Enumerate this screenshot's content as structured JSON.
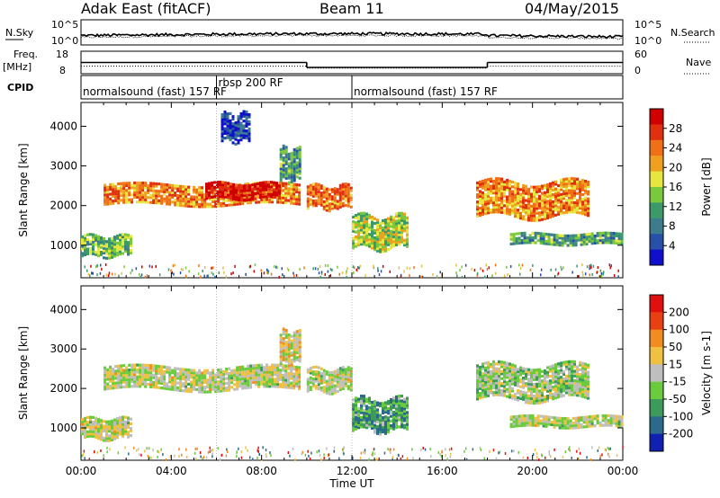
{
  "header": {
    "radar": "Adak East (fitACF)",
    "beam": "Beam 11",
    "date": "04/May/2015"
  },
  "chart_data": [
    {
      "type": "line",
      "panel": "noise",
      "left_label": "N.Sky",
      "right_label": "N.Search",
      "left_ticks": [
        "10^5",
        "10^0"
      ],
      "right_ticks": [
        "10^5",
        "10^0"
      ],
      "x": [
        "00:00",
        "04:00",
        "08:00",
        "12:00",
        "16:00",
        "20:00",
        "00:00"
      ]
    },
    {
      "type": "line",
      "panel": "frequency",
      "left_label_1": "Freq.",
      "left_label_2": "[MHz]",
      "left_ticks": [
        "18",
        "8"
      ],
      "right_label": "Nave",
      "right_ticks": [
        "60",
        "0"
      ],
      "series": [
        {
          "name": "Freq.",
          "segments": [
            {
              "x0": 0,
              "x1": 10,
              "y": 13
            },
            {
              "x0": 10,
              "x1": 18,
              "y": 10.8
            },
            {
              "x0": 18,
              "x1": 24,
              "y": 13
            }
          ]
        },
        {
          "name": "Nave",
          "segments": [
            {
              "x0": 0,
              "x1": 10,
              "y": 20
            },
            {
              "x0": 10,
              "x1": 18,
              "y": 15
            },
            {
              "x0": 18,
              "x1": 24,
              "y": 20
            }
          ]
        }
      ]
    },
    {
      "type": "table",
      "panel": "cpid",
      "label": "CPID",
      "programs": [
        {
          "name": "normalsound (fast) 157 RF",
          "start": 0,
          "end": 6
        },
        {
          "name": "rbsp 200 RF",
          "start": 6,
          "end": 12
        },
        {
          "name": "normalsound (fast) 157 RF",
          "start": 12,
          "end": 24
        }
      ]
    },
    {
      "type": "heatmap",
      "panel": "power",
      "ylabel": "Slant Range [km]",
      "yticks": [
        "4000",
        "3000",
        "2000",
        "1000"
      ],
      "ylim": [
        180,
        4600
      ],
      "xlim": [
        0,
        24
      ],
      "colorbar_label": "Power [dB]",
      "colorbar_ticks": [
        "28",
        "24",
        "20",
        "16",
        "12",
        "8",
        "4"
      ],
      "colorbar_colors": [
        "#1010cc",
        "#2850a8",
        "#3c7c8c",
        "#3c9a6a",
        "#7ac83c",
        "#e6e640",
        "#f0a020",
        "#f07018",
        "#e03010",
        "#d00000"
      ],
      "regions": [
        {
          "t0": 1.0,
          "t1": 9.7,
          "r0": 2000,
          "r1": 2500,
          "level": 0.72
        },
        {
          "t0": 5.5,
          "t1": 8.8,
          "r0": 2150,
          "r1": 2550,
          "level": 0.95
        },
        {
          "t0": 0.0,
          "t1": 2.2,
          "r0": 700,
          "r1": 1200,
          "level": 0.42
        },
        {
          "t0": 10.0,
          "t1": 12.0,
          "r0": 1900,
          "r1": 2500,
          "level": 0.72
        },
        {
          "t0": 12.0,
          "t1": 14.5,
          "r0": 900,
          "r1": 1700,
          "level": 0.5
        },
        {
          "t0": 17.5,
          "t1": 22.5,
          "r0": 1700,
          "r1": 2600,
          "level": 0.7
        },
        {
          "t0": 19.0,
          "t1": 24.0,
          "r0": 1000,
          "r1": 1300,
          "level": 0.35
        },
        {
          "t0": 8.8,
          "t1": 9.7,
          "r0": 2600,
          "r1": 3400,
          "level": 0.35
        },
        {
          "t0": 6.2,
          "t1": 7.4,
          "r0": 3600,
          "r1": 4300,
          "level": 0.12
        }
      ]
    },
    {
      "type": "heatmap",
      "panel": "velocity",
      "ylabel": "Slant Range [km]",
      "yticks": [
        "4000",
        "3000",
        "2000",
        "1000"
      ],
      "ylim": [
        180,
        4600
      ],
      "xlim": [
        0,
        24
      ],
      "xticks": [
        "00:00",
        "04:00",
        "08:00",
        "12:00",
        "16:00",
        "20:00",
        "00:00"
      ],
      "xlabel": "Time UT",
      "colorbar_label": "Velocity [m s-1]",
      "colorbar_ticks": [
        "200",
        "100",
        "50",
        "15",
        "-15",
        "-50",
        "-100",
        "-200"
      ],
      "colorbar_colors": [
        "#1020b0",
        "#2c6a8c",
        "#3c9a5a",
        "#6acc3c",
        "#bebebe",
        "#f0c040",
        "#f08c20",
        "#e84010",
        "#e01010"
      ],
      "regions": [
        {
          "t0": 1.0,
          "t1": 9.7,
          "r0": 1950,
          "r1": 2550,
          "level": 0.5
        },
        {
          "t0": 0.0,
          "t1": 2.2,
          "r0": 700,
          "r1": 1200,
          "level": 0.5
        },
        {
          "t0": 10.0,
          "t1": 12.0,
          "r0": 1900,
          "r1": 2500,
          "level": 0.5
        },
        {
          "t0": 12.0,
          "t1": 14.5,
          "r0": 900,
          "r1": 1700,
          "level": 0.3
        },
        {
          "t0": 17.5,
          "t1": 22.5,
          "r0": 1700,
          "r1": 2600,
          "level": 0.45
        },
        {
          "t0": 19.0,
          "t1": 24.0,
          "r0": 1000,
          "r1": 1300,
          "level": 0.5
        },
        {
          "t0": 8.8,
          "t1": 9.7,
          "r0": 2600,
          "r1": 3400,
          "level": 0.55
        }
      ]
    }
  ]
}
